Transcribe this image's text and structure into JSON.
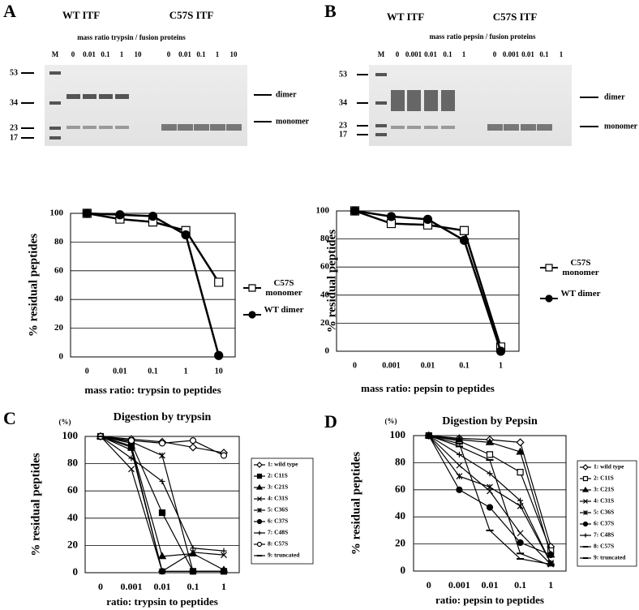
{
  "panel_labels": [
    "A",
    "B",
    "C",
    "D"
  ],
  "gels": [
    {
      "wt_label": "WT ITF",
      "mut_label": "C57S ITF",
      "ratio_label": "mass ratio trypsin / fusion proteins",
      "lanes": [
        "M",
        "0",
        "0.01",
        "0.1",
        "1",
        "10",
        "0",
        "0.01",
        "0.1",
        "1",
        "10"
      ],
      "markers": [
        53,
        34,
        23,
        17
      ],
      "bands": [
        "dimer",
        "monomer"
      ]
    },
    {
      "wt_label": "WT ITF",
      "mut_label": "C57S ITF",
      "ratio_label": "mass ratio pepsin / fusion proteins",
      "lanes": [
        "M",
        "0",
        "0.001",
        "0.01",
        "0.1",
        "1",
        "0",
        "0.001",
        "0.01",
        "0.1",
        "1"
      ],
      "markers": [
        53,
        34,
        23,
        17
      ],
      "bands": [
        "dimer",
        "monomer"
      ]
    }
  ],
  "chart_data": [
    {
      "type": "line",
      "x_label": "mass ratio: trypsin to peptides",
      "y_label": "% residual peptides",
      "categories": [
        "0",
        "0.01",
        "0.1",
        "1",
        "10"
      ],
      "ylim": [
        0,
        100
      ],
      "yticks": [
        0,
        20,
        40,
        60,
        80,
        100
      ],
      "grid": true,
      "series": [
        {
          "name": "C57S monomer",
          "color": "#000000",
          "marker": "square",
          "filled": false,
          "values": [
            100,
            96,
            94,
            88,
            52
          ]
        },
        {
          "name": "WT dimer",
          "color": "#000000",
          "marker": "circle",
          "filled": true,
          "values": [
            100,
            99,
            98,
            85,
            1
          ]
        }
      ]
    },
    {
      "type": "line",
      "x_label": "mass ratio: pepsin to peptides",
      "y_label": "% residual peptides",
      "categories": [
        "0",
        "0.001",
        "0.01",
        "0.1",
        "1"
      ],
      "ylim": [
        0,
        100
      ],
      "yticks": [
        0,
        20,
        40,
        60,
        80,
        100
      ],
      "grid": true,
      "series": [
        {
          "name": "C57S monomer",
          "color": "#000000",
          "marker": "square",
          "filled": false,
          "values": [
            100,
            91,
            90,
            86,
            3
          ]
        },
        {
          "name": "WT dimer",
          "color": "#000000",
          "marker": "circle",
          "filled": true,
          "values": [
            100,
            96,
            94,
            79,
            0
          ]
        }
      ]
    },
    {
      "type": "line",
      "title": "Digestion by trypsin",
      "y_unit": "(%)",
      "x_label": "ratio: trypsin to peptides",
      "y_label": "% residual peptides",
      "categories": [
        "0",
        "0.001",
        "0.01",
        "0.1",
        "1"
      ],
      "ylim": [
        0,
        100
      ],
      "yticks": [
        0,
        20,
        40,
        60,
        80,
        100
      ],
      "grid": true,
      "series": [
        {
          "name": "1: wild type",
          "color": "#000000",
          "marker": "diamond",
          "filled": false,
          "values": [
            100,
            98,
            96,
            92,
            88
          ]
        },
        {
          "name": "2: C11S",
          "color": "#000000",
          "marker": "square",
          "filled": true,
          "values": [
            100,
            95,
            44,
            1,
            1
          ]
        },
        {
          "name": "3: C21S",
          "color": "#000000",
          "marker": "triangle",
          "filled": true,
          "values": [
            100,
            93,
            12,
            14,
            2
          ]
        },
        {
          "name": "4: C31S",
          "color": "#000000",
          "marker": "x",
          "filled": false,
          "values": [
            100,
            76,
            1,
            15,
            13
          ]
        },
        {
          "name": "5: C36S",
          "color": "#000000",
          "marker": "star",
          "filled": false,
          "values": [
            100,
            96,
            86,
            1,
            1
          ]
        },
        {
          "name": "6: C37S",
          "color": "#000000",
          "marker": "circle",
          "filled": true,
          "values": [
            100,
            92,
            1,
            1,
            1
          ]
        },
        {
          "name": "7: C48S",
          "color": "#000000",
          "marker": "plus",
          "filled": false,
          "values": [
            100,
            84,
            67,
            18,
            16
          ]
        },
        {
          "name": "8: C57S",
          "color": "#000000",
          "marker": "circle",
          "filled": false,
          "values": [
            100,
            97,
            95,
            97,
            86
          ]
        },
        {
          "name": "9: truncated",
          "color": "#000000",
          "marker": "dash",
          "filled": false,
          "values": [
            100,
            90,
            1,
            1,
            1
          ]
        }
      ]
    },
    {
      "type": "line",
      "title": "Digestion by Pepsin",
      "y_unit": "(%)",
      "x_label": "ratio: pepsin to peptides",
      "y_label": "% residual peptides",
      "categories": [
        "0",
        "0.001",
        "0.01",
        "0.1",
        "1"
      ],
      "ylim": [
        0,
        100
      ],
      "yticks": [
        0,
        20,
        40,
        60,
        80,
        100
      ],
      "grid": true,
      "series": [
        {
          "name": "1: wild type",
          "color": "#000000",
          "marker": "diamond",
          "filled": false,
          "values": [
            100,
            98,
            97,
            95,
            18
          ]
        },
        {
          "name": "2: C11S",
          "color": "#000000",
          "marker": "square",
          "filled": false,
          "values": [
            100,
            96,
            86,
            73,
            15
          ]
        },
        {
          "name": "3: C21S",
          "color": "#000000",
          "marker": "triangle",
          "filled": true,
          "values": [
            100,
            97,
            95,
            88,
            12
          ]
        },
        {
          "name": "4: C31S",
          "color": "#000000",
          "marker": "x",
          "filled": false,
          "values": [
            100,
            78,
            59,
            28,
            5
          ]
        },
        {
          "name": "5: C36S",
          "color": "#000000",
          "marker": "star",
          "filled": false,
          "values": [
            100,
            70,
            62,
            48,
            6
          ]
        },
        {
          "name": "6: C37S",
          "color": "#000000",
          "marker": "circle",
          "filled": true,
          "values": [
            100,
            60,
            47,
            21,
            12
          ]
        },
        {
          "name": "7: C48S",
          "color": "#000000",
          "marker": "plus",
          "filled": false,
          "values": [
            100,
            86,
            72,
            52,
            6
          ]
        },
        {
          "name": "8: C57S",
          "color": "#000000",
          "marker": "dash",
          "filled": false,
          "values": [
            100,
            92,
            82,
            13,
            4
          ]
        },
        {
          "name": "9: truncated",
          "color": "#000000",
          "marker": "dash",
          "filled": false,
          "values": [
            100,
            94,
            30,
            9,
            5
          ]
        }
      ]
    }
  ]
}
